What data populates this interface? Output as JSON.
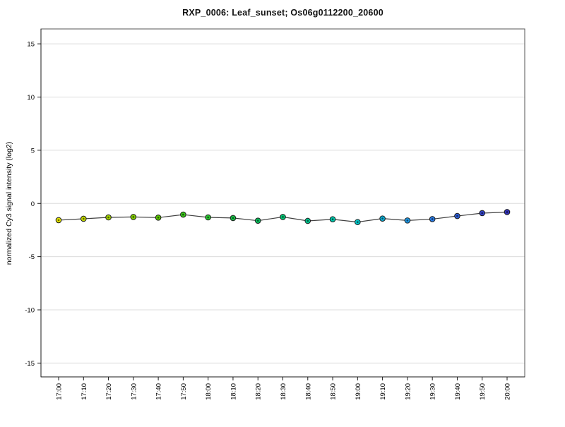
{
  "chart_data": {
    "type": "line",
    "title": "RXP_0006: Leaf_sunset; Os06g0112200_20600",
    "xlabel": "",
    "ylabel": "normalized Cy3 signal intensity (log2)",
    "categories": [
      "17:00",
      "17:10",
      "17:20",
      "17:30",
      "17:40",
      "17:50",
      "18:00",
      "18:10",
      "18:20",
      "18:30",
      "18:40",
      "18:50",
      "19:00",
      "19:10",
      "19:20",
      "19:30",
      "19:40",
      "19:50",
      "20:00"
    ],
    "values": [
      -1.57,
      -1.44,
      -1.31,
      -1.27,
      -1.33,
      -1.05,
      -1.31,
      -1.37,
      -1.62,
      -1.27,
      -1.64,
      -1.49,
      -1.75,
      -1.42,
      -1.6,
      -1.47,
      -1.18,
      -0.91,
      -0.81
    ],
    "point_colors": [
      "#e3e300",
      "#c6dc00",
      "#a3d400",
      "#7fcc00",
      "#5bc800",
      "#37c617",
      "#28c42e",
      "#18c246",
      "#08c05c",
      "#00c472",
      "#00c68f",
      "#00c8ac",
      "#00c6c8",
      "#0fb2da",
      "#1e9ae8",
      "#2a7ce6",
      "#2f5fd8",
      "#3242c8",
      "#3333bb"
    ],
    "yticks": [
      15,
      10,
      5,
      0,
      -5,
      -10,
      -15
    ],
    "ylim": [
      -16.3,
      16.4
    ],
    "grid": "horizontal",
    "legend": "none",
    "grid_color": "#dcdcdc",
    "line_color": "#404040",
    "axis_color": "#1a1a1a",
    "box_color": "#555555",
    "marker_edge_color": "#1a1a1a",
    "marker_center_dot_color": "rgba(0,0,0,0.55)"
  }
}
